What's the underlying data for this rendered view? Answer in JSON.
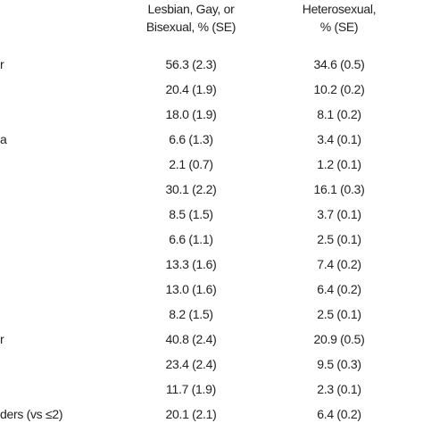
{
  "table": {
    "header": [
      "Lesbian, Gay, or",
      "Bisexual, % (SE)",
      "Heterosexual,",
      "% (SE)"
    ],
    "rows": [
      [
        "r",
        "56.3 (2.3)",
        "34.6 (0.5)"
      ],
      [
        null,
        "20.4 (1.9)",
        "10.2 (0.2)"
      ],
      [
        null,
        "18.0 (1.9)",
        "8.1 (0.2)"
      ],
      [
        "a",
        "6.6 (1.3)",
        "3.4 (0.1)"
      ],
      [
        null,
        "2.1 (0.7)",
        "1.2 (0.1)"
      ],
      [
        null,
        "30.1 (2.2)",
        "16.1 (0.3)"
      ],
      [
        null,
        "8.5 (1.5)",
        "3.7 (0.1)"
      ],
      [
        null,
        "6.6 (1.1)",
        "2.5 (0.1)"
      ],
      [
        null,
        "13.3 (1.6)",
        "7.4 (0.2)"
      ],
      [
        null,
        "13.0 (1.6)",
        "6.4 (0.2)"
      ],
      [
        null,
        "8.2 (1.5)",
        "2.5 (0.1)"
      ],
      [
        "r",
        "40.8 (2.4)",
        "20.9 (0.5)"
      ],
      [
        null,
        "23.4 (2.4)",
        "9.5 (0.3)"
      ],
      [
        null,
        "11.7 (1.9)",
        "2.3 (0.1)"
      ],
      [
        "ders (vs ≤2)",
        "20.1 (2.1)",
        "6.4 (0.2)"
      ]
    ]
  }
}
